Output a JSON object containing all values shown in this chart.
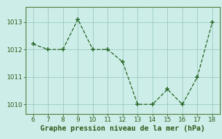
{
  "x": [
    6,
    7,
    8,
    9,
    10,
    11,
    12,
    13,
    14,
    15,
    16,
    17,
    18
  ],
  "y": [
    1012.2,
    1012.0,
    1012.0,
    1013.1,
    1012.0,
    1012.0,
    1011.55,
    1010.0,
    1010.0,
    1010.55,
    1010.0,
    1011.0,
    1013.0
  ],
  "line_color": "#2d6a2d",
  "marker": "+",
  "bg_color": "#cdeee8",
  "grid_color": "#a0ccc4",
  "xlabel": "Graphe pression niveau de la mer (hPa)",
  "xlim": [
    5.5,
    18.5
  ],
  "ylim": [
    1009.65,
    1013.55
  ],
  "xticks": [
    6,
    7,
    8,
    9,
    10,
    11,
    12,
    13,
    14,
    15,
    16,
    17,
    18
  ],
  "yticks": [
    1010,
    1011,
    1012,
    1013
  ],
  "tick_color": "#2d5a1b",
  "xlabel_fontsize": 7.5,
  "tick_fontsize": 6.5,
  "linewidth": 1.0,
  "markersize": 4,
  "border_color": "#4a7a3a"
}
